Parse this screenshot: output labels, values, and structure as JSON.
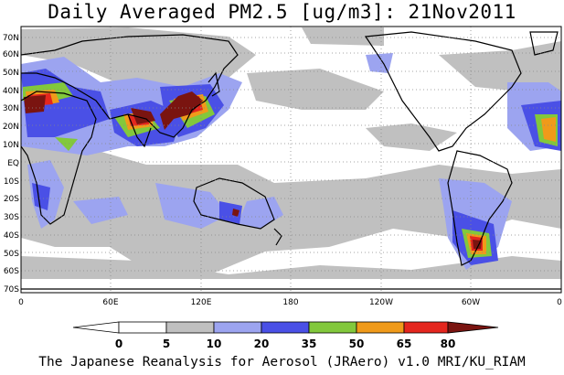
{
  "title": "Daily Averaged PM2.5 [ug/m3]: 21Nov2011",
  "footer": "The Japanese Reanalysis for Aerosol (JRAero) v1.0 MRI/KU_RIAM",
  "map": {
    "lat_labels": [
      "70N",
      "60N",
      "50N",
      "40N",
      "30N",
      "20N",
      "10N",
      "EQ",
      "10S",
      "20S",
      "30S",
      "40S",
      "50S",
      "60S",
      "70S"
    ],
    "lon_labels": [
      "0",
      "60E",
      "120E",
      "180",
      "120W",
      "60W",
      "0"
    ]
  },
  "legend": {
    "levels": [
      "0",
      "5",
      "10",
      "20",
      "35",
      "50",
      "65",
      "80"
    ],
    "colors": [
      "#ffffff",
      "#ffffff",
      "#c0c0c0",
      "#9ca4f0",
      "#4a50e6",
      "#82c83c",
      "#f09a1a",
      "#e4261e",
      "#7a1410"
    ]
  }
}
